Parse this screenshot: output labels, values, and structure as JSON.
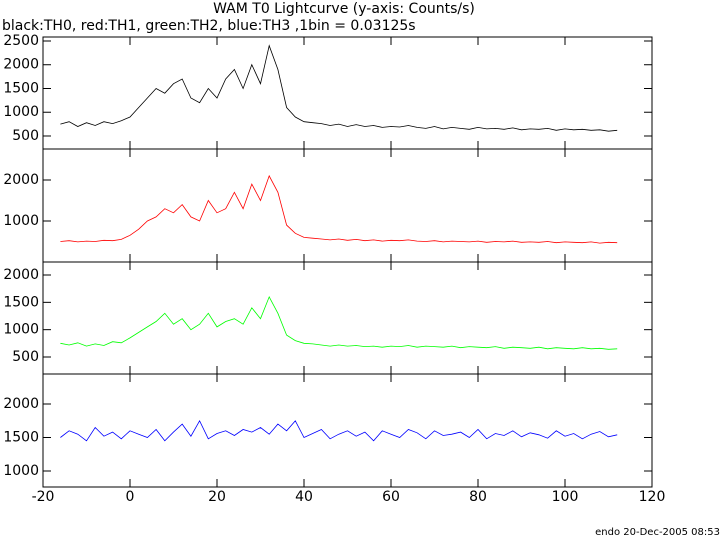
{
  "chart_data": {
    "type": "line",
    "title": "WAM T0 Lightcurve (y-axis: Counts/s)",
    "subtitle": "black:TH0, red:TH1, green:TH2, blue:TH3 ,1bin = 0.03125s",
    "annotation": "endo 20-Dec-2005 08:53",
    "xlim": [
      -20,
      120
    ],
    "xticks": [
      -20,
      0,
      20,
      40,
      60,
      80,
      100,
      120
    ],
    "x": [
      -16,
      -14,
      -12,
      -10,
      -8,
      -6,
      -4,
      -2,
      0,
      2,
      4,
      6,
      8,
      10,
      12,
      14,
      16,
      18,
      20,
      22,
      24,
      26,
      28,
      30,
      32,
      34,
      36,
      38,
      40,
      42,
      44,
      46,
      48,
      50,
      52,
      54,
      56,
      58,
      60,
      62,
      64,
      66,
      68,
      70,
      72,
      74,
      76,
      78,
      80,
      82,
      84,
      86,
      88,
      90,
      92,
      94,
      96,
      98,
      100,
      102,
      104,
      106,
      108,
      110,
      112
    ],
    "series": [
      {
        "color": "#000000",
        "ylim": [
          226,
          2584
        ],
        "yticks": [
          500,
          1000,
          1500,
          2000,
          2500
        ],
        "values": [
          750,
          800,
          700,
          780,
          720,
          800,
          760,
          820,
          900,
          1100,
          1300,
          1500,
          1400,
          1600,
          1700,
          1300,
          1200,
          1500,
          1300,
          1700,
          1900,
          1500,
          2000,
          1600,
          2400,
          1900,
          1100,
          900,
          800,
          780,
          760,
          720,
          750,
          700,
          740,
          700,
          720,
          680,
          700,
          690,
          720,
          680,
          660,
          700,
          650,
          680,
          660,
          640,
          680,
          650,
          660,
          640,
          670,
          630,
          650,
          640,
          660,
          620,
          650,
          630,
          640,
          620,
          630,
          600,
          620
        ]
      },
      {
        "color": "#ff0000",
        "ylim": [
          0,
          2756
        ],
        "yticks": [
          1000,
          2000
        ],
        "values": [
          500,
          520,
          490,
          510,
          500,
          530,
          520,
          550,
          650,
          800,
          1000,
          1100,
          1300,
          1200,
          1400,
          1100,
          1000,
          1500,
          1200,
          1300,
          1700,
          1300,
          1900,
          1500,
          2100,
          1700,
          900,
          700,
          600,
          580,
          560,
          540,
          560,
          530,
          550,
          520,
          540,
          510,
          530,
          520,
          540,
          510,
          500,
          520,
          490,
          510,
          500,
          490,
          510,
          480,
          500,
          490,
          510,
          480,
          490,
          480,
          500,
          470,
          490,
          480,
          470,
          490,
          460,
          480,
          470
        ]
      },
      {
        "color": "#00ff00",
        "ylim": [
          189,
          2238
        ],
        "yticks": [
          500,
          1000,
          1500,
          2000
        ],
        "values": [
          750,
          720,
          760,
          700,
          740,
          710,
          780,
          760,
          850,
          950,
          1050,
          1150,
          1300,
          1100,
          1200,
          1000,
          1100,
          1300,
          1050,
          1150,
          1200,
          1100,
          1400,
          1200,
          1600,
          1300,
          900,
          800,
          750,
          740,
          720,
          700,
          720,
          700,
          710,
          690,
          700,
          680,
          700,
          690,
          710,
          680,
          700,
          690,
          680,
          700,
          670,
          690,
          680,
          670,
          690,
          660,
          680,
          670,
          660,
          680,
          650,
          670,
          660,
          650,
          670,
          650,
          660,
          640,
          650
        ]
      },
      {
        "color": "#0000ff",
        "ylim": [
          761,
          2448
        ],
        "yticks": [
          1000,
          1500,
          2000
        ],
        "values": [
          1500,
          1600,
          1550,
          1450,
          1650,
          1520,
          1580,
          1480,
          1600,
          1550,
          1500,
          1620,
          1450,
          1580,
          1700,
          1520,
          1750,
          1480,
          1560,
          1600,
          1530,
          1620,
          1580,
          1650,
          1550,
          1700,
          1600,
          1750,
          1500,
          1560,
          1620,
          1480,
          1550,
          1600,
          1520,
          1580,
          1450,
          1600,
          1550,
          1500,
          1620,
          1570,
          1480,
          1600,
          1530,
          1550,
          1580,
          1500,
          1620,
          1480,
          1560,
          1530,
          1600,
          1510,
          1570,
          1540,
          1490,
          1600,
          1520,
          1560,
          1480,
          1550,
          1590,
          1510,
          1540
        ]
      }
    ]
  }
}
